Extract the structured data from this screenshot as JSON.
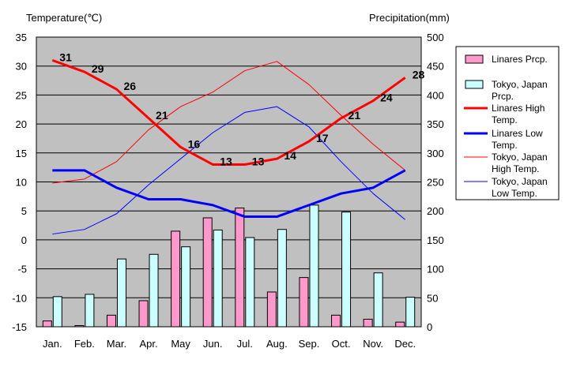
{
  "chart_data": {
    "type": "bar",
    "y_left_label": "Temperature(℃)",
    "y_right_label": "Precipitation(mm)",
    "categories": [
      "Jan.",
      "Feb.",
      "Mar.",
      "Apr.",
      "May",
      "Jun.",
      "Jul.",
      "Aug.",
      "Sep.",
      "Oct.",
      "Nov.",
      "Dec."
    ],
    "y_left_range": [
      -15,
      35
    ],
    "y_left_ticks": [
      35,
      30,
      25,
      20,
      15,
      10,
      5,
      0,
      -5,
      -10,
      -15
    ],
    "y_right_range": [
      0,
      500
    ],
    "y_right_ticks": [
      500,
      450,
      400,
      350,
      300,
      250,
      200,
      150,
      100,
      50,
      0
    ],
    "grid": true,
    "legend_position": "right",
    "bar_series": [
      {
        "name": "Linares Prcp.",
        "legend_lines": [
          "Linares Prcp."
        ],
        "color": "#ff99cc",
        "axis": "right",
        "values": [
          10,
          2,
          20,
          45,
          165,
          188,
          205,
          60,
          85,
          20,
          13,
          8
        ]
      },
      {
        "name": "Tokyo, Japan Prcp.",
        "legend_lines": [
          "Tokyo, Japan",
          "Prcp."
        ],
        "color": "#ccffff",
        "axis": "right",
        "values": [
          52,
          56,
          117,
          125,
          138,
          167,
          154,
          168,
          210,
          198,
          93,
          51
        ]
      }
    ],
    "line_series": [
      {
        "name": "Linares High Temp.",
        "legend_lines": [
          "Linares High",
          "Temp."
        ],
        "color": "#ff0000",
        "width": 3,
        "axis": "left",
        "values": [
          31,
          29,
          26,
          21,
          16,
          13,
          13,
          14,
          17,
          21,
          24,
          28
        ],
        "labels": [
          "31",
          "29",
          "26",
          "21",
          "16",
          "13",
          "13",
          "14",
          "17",
          "21",
          "24",
          "28"
        ]
      },
      {
        "name": "Linares Low Temp.",
        "legend_lines": [
          "Linares Low",
          "Temp."
        ],
        "color": "#0000ff",
        "width": 3,
        "axis": "left",
        "values": [
          12,
          12,
          9,
          7,
          7,
          6,
          4,
          4,
          6,
          8,
          9,
          12
        ]
      },
      {
        "name": "Tokyo, Japan High Temp.",
        "legend_lines": [
          "Tokyo, Japan",
          "High Temp."
        ],
        "color": "#ff0000",
        "width": 1,
        "axis": "left",
        "values": [
          9.8,
          10.5,
          13.5,
          19,
          23,
          25.5,
          29.2,
          30.8,
          26.8,
          21.5,
          16.5,
          12
        ]
      },
      {
        "name": "Tokyo, Japan Low Temp.",
        "legend_lines": [
          "Tokyo, Japan",
          "Low Temp."
        ],
        "color": "#0000ff",
        "width": 1,
        "axis": "left",
        "values": [
          1,
          1.8,
          4.5,
          9.5,
          14,
          18.5,
          22,
          23,
          19.5,
          13.5,
          8,
          3.5
        ]
      }
    ]
  }
}
